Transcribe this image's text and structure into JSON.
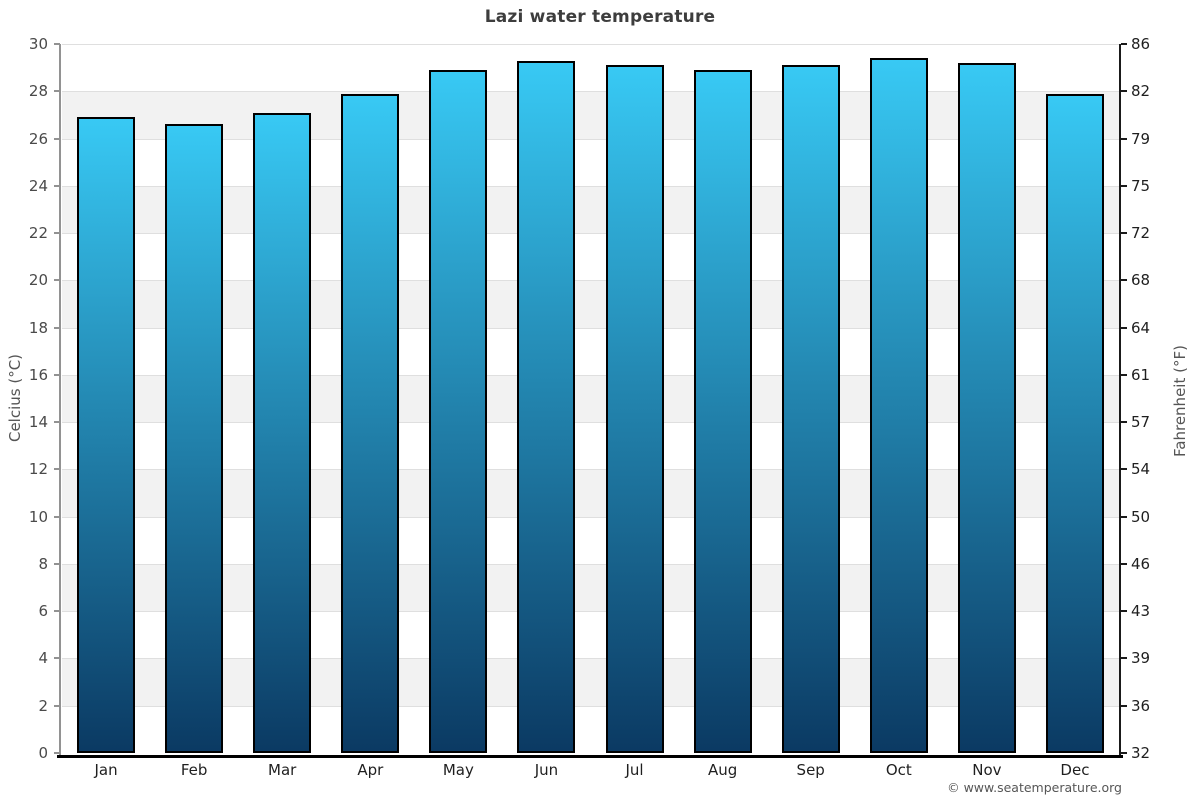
{
  "chart_data": {
    "type": "bar",
    "title": "Lazi water temperature",
    "categories": [
      "Jan",
      "Feb",
      "Mar",
      "Apr",
      "May",
      "Jun",
      "Jul",
      "Aug",
      "Sep",
      "Oct",
      "Nov",
      "Dec"
    ],
    "values": [
      26.9,
      26.6,
      27.1,
      27.9,
      28.9,
      29.3,
      29.1,
      28.9,
      29.1,
      29.4,
      29.2,
      27.9
    ],
    "unit": "°C",
    "ylabel_left": "Celcius (°C)",
    "ylabel_right": "Fahrenheit (°F)",
    "ylim": [
      0,
      30
    ],
    "yticks_celsius": [
      0,
      2,
      4,
      6,
      8,
      10,
      12,
      14,
      16,
      18,
      20,
      22,
      24,
      26,
      28,
      30
    ],
    "yticks_fahrenheit": [
      "32",
      "36",
      "39",
      "43",
      "46",
      "50",
      "54",
      "57",
      "61",
      "64",
      "68",
      "72",
      "75",
      "79",
      "82",
      "86"
    ],
    "legend_position": "none",
    "grid": "alternating horizontal bands every 2°C"
  },
  "footer": {
    "copyright": "© www.seatemperature.org"
  },
  "colors": {
    "bar_gradient_top": "#38c9f4",
    "bar_gradient_bottom": "#0b3a63",
    "bar_border": "#000000",
    "band": "#f2f2f2",
    "gridline": "#dfdfdf",
    "title_text": "#3d3d3d",
    "left_axis_text": "#4a4a4a",
    "right_axis_text": "#1f1f1f",
    "left_tick_mark": "#929292",
    "right_tick_mark": "#1a1a1a"
  }
}
